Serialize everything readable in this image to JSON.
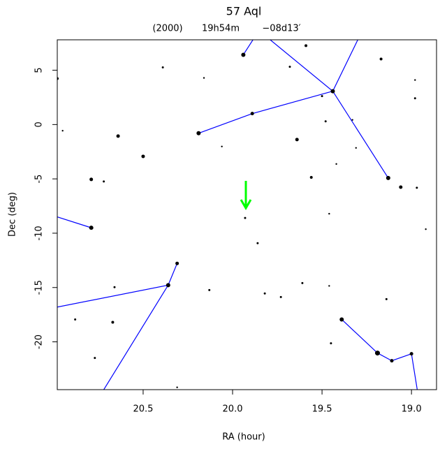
{
  "chart_data": {
    "type": "scatter",
    "title": "57 Aql",
    "subtitle": [
      "(2000)",
      "19h54m",
      "−08d13′"
    ],
    "xlabel": "RA (hour)",
    "ylabel": "Dec (deg)",
    "xlim": [
      20.98,
      18.86
    ],
    "ylim": [
      -24.4,
      7.8
    ],
    "xticks": [
      20.5,
      {
        "value": 20,
        "label": "20.0"
      },
      19.5,
      {
        "value": 19,
        "label": "19.0"
      }
    ],
    "yticks": [
      5,
      0,
      -5,
      -10,
      -15,
      -20
    ],
    "color": "#000000",
    "line_color": "#0000ff",
    "x": [
      19.94,
      19.44,
      19.89,
      20.19,
      19.13,
      19.06,
      20.36,
      20.31,
      20.79,
      19.39,
      19.19,
      19.11,
      19.0,
      19.64,
      19.93,
      20.79,
      20.64,
      20.5,
      19.59,
      18.97,
      19.17,
      19.5,
      18.98,
      19.68,
      20.39,
      20.98,
      20.72,
      19.48,
      19.33,
      19.31,
      20.13,
      20.66,
      20.88,
      20.67,
      19.86,
      19.82,
      19.73,
      19.61,
      19.56,
      19.42,
      19.46,
      19.45,
      19.14,
      20.77,
      20.31,
      20.16,
      19.46,
      18.92,
      18.98,
      20.06,
      20.95
    ],
    "y": [
      6.42,
      3.07,
      1.01,
      -0.8,
      -4.92,
      -5.76,
      -14.78,
      -12.78,
      -9.5,
      -17.94,
      -21.03,
      -21.74,
      -21.1,
      -1.38,
      -8.6,
      -5.05,
      -1.06,
      -2.93,
      7.26,
      -5.82,
      6.03,
      2.62,
      2.42,
      5.32,
      5.26,
      4.23,
      -5.24,
      0.3,
      0.43,
      -2.15,
      -15.23,
      -14.97,
      -17.94,
      -18.2,
      -10.92,
      -15.55,
      -15.88,
      -14.59,
      -4.86,
      -3.63,
      -14.85,
      -20.13,
      -16.07,
      -21.48,
      -24.19,
      4.29,
      -8.21,
      -9.63,
      4.1,
      -2.02,
      -0.57
    ],
    "sizes": [
      3,
      3,
      2.5,
      3,
      3,
      2.5,
      3,
      2.5,
      3,
      3,
      3.5,
      2.5,
      2.5,
      2.5,
      1.5,
      2.5,
      2.5,
      2.5,
      2,
      1.5,
      2,
      1.5,
      1.5,
      1.5,
      1.5,
      2,
      1.5,
      1.5,
      1.2,
      1.2,
      1.5,
      1.5,
      1.5,
      2,
      1.5,
      1.5,
      1.5,
      1.5,
      2,
      1.2,
      1.2,
      1.5,
      1.5,
      1.5,
      1.2,
      1.2,
      1.2,
      1.2,
      1.2,
      1.2,
      1.2
    ],
    "lines": [
      {
        "x": [
          19.94,
          19.855
        ],
        "y": [
          6.42,
          8.6
        ]
      },
      {
        "x": [
          19.84,
          19.44
        ],
        "y": [
          8.48,
          3.07
        ]
      },
      {
        "x": [
          19.28,
          19.44
        ],
        "y": [
          8.48,
          3.07
        ]
      },
      {
        "x": [
          19.44,
          19.89,
          20.19
        ],
        "y": [
          3.07,
          1.01,
          -0.8
        ]
      },
      {
        "x": [
          19.44,
          19.13
        ],
        "y": [
          3.07,
          -4.92
        ]
      },
      {
        "x": [
          21.01,
          20.79
        ],
        "y": [
          -8.34,
          -9.5
        ]
      },
      {
        "x": [
          21.01,
          20.36,
          20.31
        ],
        "y": [
          -16.9,
          -14.78,
          -12.78
        ]
      },
      {
        "x": [
          20.36,
          20.75
        ],
        "y": [
          -14.78,
          -25.2
        ]
      },
      {
        "x": [
          19.39,
          19.19,
          19.11,
          19.0,
          18.96
        ],
        "y": [
          -17.94,
          -21.03,
          -21.74,
          -21.1,
          -25.2
        ]
      }
    ]
  }
}
